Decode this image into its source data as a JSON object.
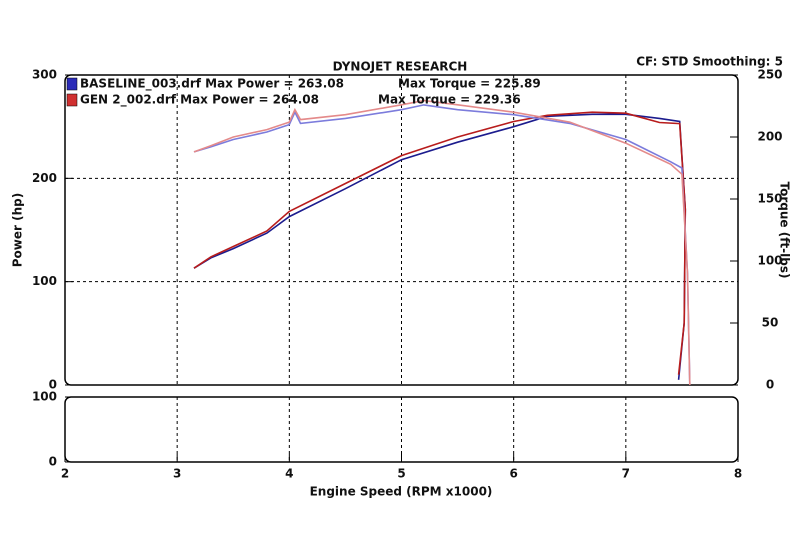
{
  "chart_data": {
    "type": "line",
    "title": "DYNOJET RESEARCH",
    "subtitle": "CF: STD  Smoothing: 5",
    "xlabel": "Engine Speed (RPM x1000)",
    "ylabel": "Power (hp)",
    "y2label": "Torque (ft-lbs)",
    "xlim": [
      2,
      8
    ],
    "xticks": [
      2,
      3,
      4,
      5,
      6,
      7,
      8
    ],
    "ylim": [
      0,
      300
    ],
    "yticks": [
      0,
      100,
      200,
      300
    ],
    "y2lim": [
      0,
      250
    ],
    "y2ticks": [
      0,
      50,
      100,
      150,
      200,
      250
    ],
    "grid": true,
    "legend": [
      {
        "text": "BASELINE_003.drf Max Power = 263.08",
        "torque_text": "Max Torque = 225.89",
        "color": "#2b2bb8"
      },
      {
        "text": "GEN 2_002.drf Max Power = 264.08",
        "torque_text": "Max Torque = 229.36",
        "color": "#d03030"
      }
    ],
    "series": [
      {
        "legend": 0,
        "color": "#1c1c8e",
        "x": [
          3.15,
          3.3,
          3.5,
          3.8,
          4.0,
          4.5,
          5.0,
          5.5,
          6.0,
          6.3,
          6.7,
          7.0,
          7.3,
          7.48,
          7.53,
          7.52,
          7.47
        ],
        "values": [
          113,
          123,
          132,
          147,
          163,
          190,
          218,
          235,
          250,
          260,
          262,
          262,
          258,
          255,
          170,
          60,
          5
        ]
      },
      {
        "legend": 1,
        "color": "#b81c1c",
        "x": [
          3.15,
          3.3,
          3.5,
          3.8,
          4.0,
          4.5,
          5.0,
          5.5,
          6.0,
          6.3,
          6.7,
          7.0,
          7.3,
          7.48,
          7.53,
          7.52,
          7.47
        ],
        "values": [
          113,
          124,
          134,
          149,
          168,
          195,
          222,
          240,
          255,
          261,
          264,
          263,
          254,
          253,
          170,
          60,
          10
        ]
      },
      {
        "legend": 0,
        "color": "#7c7cdc",
        "axis": "y2",
        "x": [
          3.15,
          3.3,
          3.5,
          3.8,
          4.0,
          4.05,
          4.1,
          4.5,
          5.0,
          5.2,
          5.5,
          6.0,
          6.5,
          7.0,
          7.4,
          7.5,
          7.55,
          7.57
        ],
        "values": [
          188,
          192,
          198,
          204,
          210,
          220,
          211,
          215,
          222,
          225.89,
          222,
          218,
          211,
          198,
          180,
          175,
          90,
          0
        ]
      },
      {
        "legend": 1,
        "color": "#e48a8a",
        "axis": "y2",
        "x": [
          3.15,
          3.3,
          3.5,
          3.8,
          4.0,
          4.05,
          4.1,
          4.5,
          5.0,
          5.2,
          5.5,
          6.0,
          6.5,
          7.0,
          7.4,
          7.5,
          7.55,
          7.57
        ],
        "values": [
          188,
          193,
          200,
          206,
          212,
          222,
          214,
          218,
          226,
          229.36,
          226,
          220,
          212,
          195,
          178,
          170,
          90,
          0
        ]
      }
    ],
    "lower_panel": {
      "ylim": [
        0,
        100
      ],
      "yticks": [
        0,
        100
      ]
    }
  }
}
